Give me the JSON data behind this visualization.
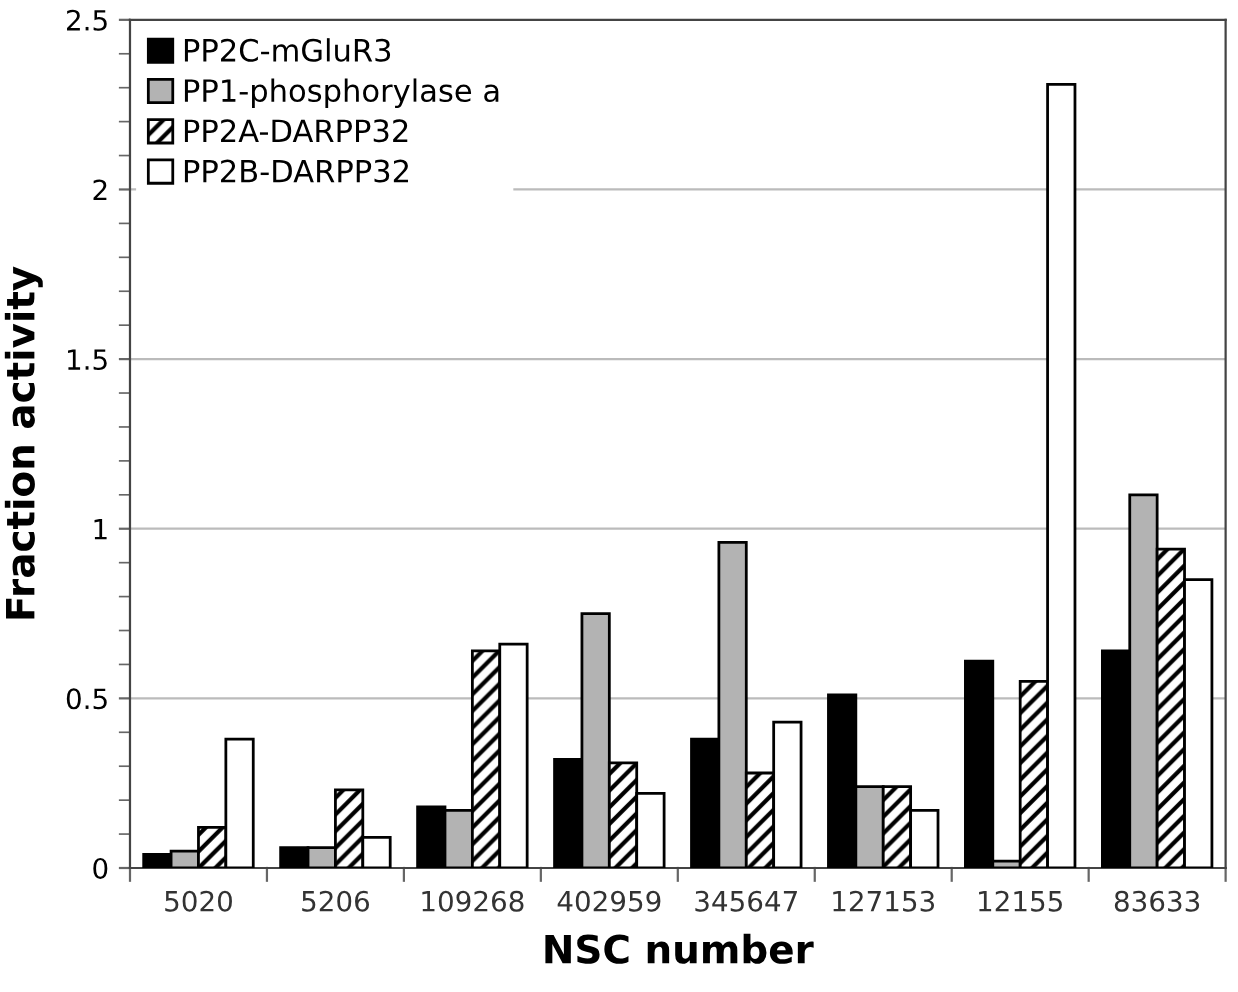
{
  "chart_data": {
    "type": "bar",
    "xlabel": "NSC number",
    "ylabel": "Fraction activity",
    "categories": [
      "5020",
      "5206",
      "109268",
      "402959",
      "345647",
      "127153",
      "12155",
      "83633"
    ],
    "series": [
      {
        "name": "PP2C-mGluR3",
        "color": "#000000",
        "values": [
          0.04,
          0.06,
          0.18,
          0.32,
          0.38,
          0.51,
          0.61,
          0.64
        ]
      },
      {
        "name": "PP1-phosphorylase a",
        "color": "#b3b3b3",
        "values": [
          0.05,
          0.06,
          0.17,
          0.75,
          0.96,
          0.24,
          0.02,
          1.1
        ]
      },
      {
        "name": "PP2A-DARPP32",
        "color": "#000000",
        "values": [
          0.12,
          0.23,
          0.64,
          0.31,
          0.28,
          0.24,
          0.55,
          0.94
        ]
      },
      {
        "name": "PP2B-DARPP32",
        "color": "#ffffff",
        "values": [
          0.38,
          0.09,
          0.66,
          0.22,
          0.43,
          0.17,
          2.31,
          0.85
        ]
      }
    ],
    "ylim": [
      0,
      2.5
    ],
    "yticks": [
      0,
      0.5,
      1,
      1.5,
      2,
      2.5
    ],
    "grid": "y",
    "legend": "top left"
  }
}
